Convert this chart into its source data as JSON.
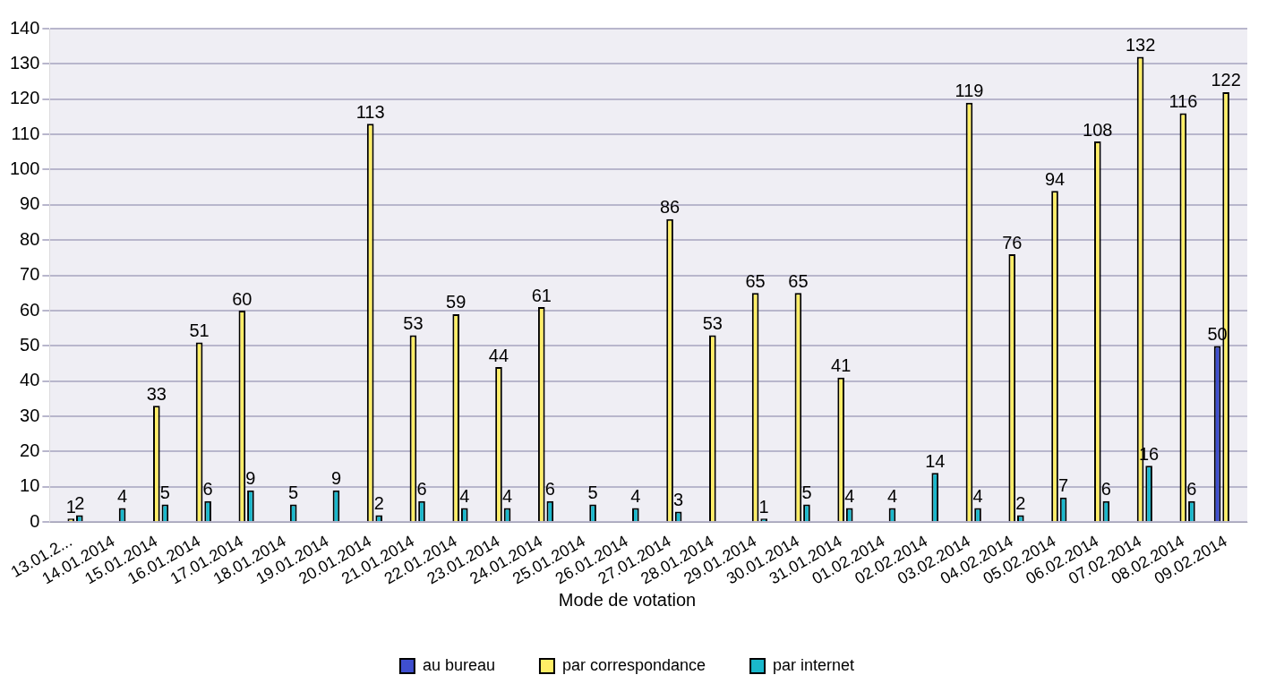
{
  "chart_data": {
    "type": "bar",
    "categories": [
      "13.01.2...",
      "14.01.2014",
      "15.01.2014",
      "16.01.2014",
      "17.01.2014",
      "18.01.2014",
      "19.01.2014",
      "20.01.2014",
      "21.01.2014",
      "22.01.2014",
      "23.01.2014",
      "24.01.2014",
      "25.01.2014",
      "26.01.2014",
      "27.01.2014",
      "28.01.2014",
      "29.01.2014",
      "30.01.2014",
      "31.01.2014",
      "01.02.2014",
      "02.02.2014",
      "03.02.2014",
      "04.02.2014",
      "05.02.2014",
      "06.02.2014",
      "07.02.2014",
      "08.02.2014",
      "09.02.2014"
    ],
    "series": [
      {
        "name": "au bureau",
        "color": "#3f4fcf",
        "values": [
          null,
          null,
          null,
          null,
          null,
          null,
          null,
          null,
          null,
          null,
          null,
          null,
          null,
          null,
          null,
          null,
          null,
          null,
          null,
          null,
          null,
          null,
          null,
          null,
          null,
          null,
          null,
          50
        ]
      },
      {
        "name": "par correspondance",
        "color": "#ffee66",
        "values": [
          1,
          null,
          33,
          51,
          60,
          null,
          null,
          113,
          53,
          59,
          44,
          61,
          null,
          null,
          86,
          53,
          65,
          65,
          41,
          null,
          null,
          119,
          76,
          94,
          108,
          132,
          116,
          122
        ]
      },
      {
        "name": "par internet",
        "color": "#1ab8cc",
        "values": [
          2,
          4,
          5,
          6,
          9,
          5,
          9,
          2,
          6,
          4,
          4,
          6,
          5,
          4,
          3,
          null,
          1,
          5,
          4,
          4,
          14,
          4,
          2,
          7,
          6,
          16,
          6,
          null
        ]
      }
    ],
    "ylim": [
      0,
      140
    ],
    "yticks": [
      0,
      10,
      20,
      30,
      40,
      50,
      60,
      70,
      80,
      90,
      100,
      110,
      120,
      130,
      140
    ],
    "grid": "y",
    "legend": "bottom",
    "legend_title": "Mode de votation",
    "data_labels": true
  }
}
